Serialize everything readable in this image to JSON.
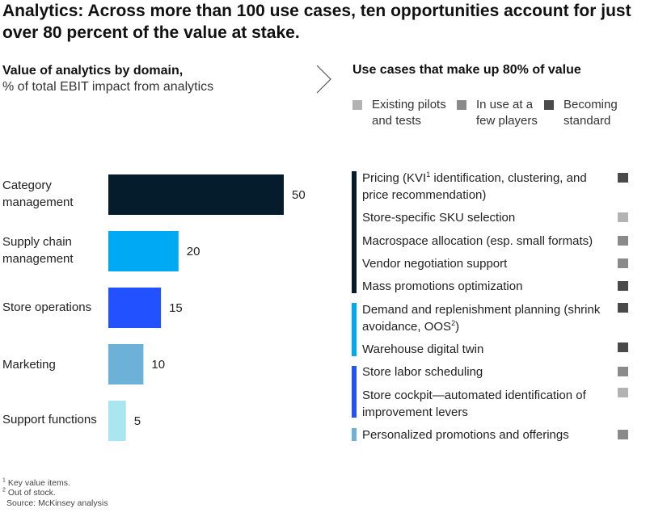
{
  "title": "Analytics: Across more than 100 use cases, ten opportunities account for just over 80 percent of the value at stake.",
  "left_header": {
    "title": "Value of analytics by domain,",
    "subtitle": "% of total EBIT impact from analytics"
  },
  "right_header": "Use cases that make up 80% of value",
  "legend": [
    {
      "line1": "Existing pilots",
      "line2": "and tests",
      "color": "#b3b3b3"
    },
    {
      "line1": "In use at a",
      "line2": "few players",
      "color": "#8a8a8a"
    },
    {
      "line1": "Becoming",
      "line2": "standard",
      "color": "#4a4a4a"
    }
  ],
  "chart_data": {
    "type": "bar",
    "orientation": "horizontal",
    "categories": [
      "Category management",
      "Supply chain management",
      "Store operations",
      "Marketing",
      "Support functions"
    ],
    "category_lines": [
      [
        "Category",
        "management"
      ],
      [
        "Supply chain",
        "management"
      ],
      [
        "Store operations"
      ],
      [
        "Marketing"
      ],
      [
        "Support functions"
      ]
    ],
    "values": [
      50,
      20,
      15,
      10,
      5
    ],
    "value_labels": [
      "50",
      "20",
      "15",
      "10",
      "5"
    ],
    "colors": [
      "#051c2c",
      "#00a9f4",
      "#2251ff",
      "#6bb1d8",
      "#aae6f0"
    ],
    "title": "Value of analytics by domain,",
    "subtitle": "% of total EBIT impact from analytics",
    "xlabel": "",
    "ylabel": "",
    "grid": false,
    "legend": "none"
  },
  "use_cases": [
    {
      "text": "Pricing (KVI",
      "sup": "1",
      "text_after": " identification, clustering, and price recommendation)",
      "status": "Becoming standard",
      "status_color": "#4a4a4a"
    },
    {
      "text": "Store-specific SKU selection",
      "status": "Existing pilots and tests",
      "status_color": "#b3b3b3"
    },
    {
      "text": "Macrospace allocation (esp. small formats)",
      "status": "In use at a few players",
      "status_color": "#8a8a8a"
    },
    {
      "text": "Vendor negotiation support",
      "status": "In use at a few players",
      "status_color": "#8a8a8a"
    },
    {
      "text": "Mass promotions optimization",
      "status": "Becoming standard",
      "status_color": "#4a4a4a"
    },
    {
      "text": "Demand and replenishment planning (shrink avoidance, OOS",
      "sup": "2",
      "text_after": ")",
      "status": "Becoming standard",
      "status_color": "#4a4a4a"
    },
    {
      "text": "Warehouse digital twin",
      "status": "Becoming standard",
      "status_color": "#4a4a4a"
    },
    {
      "text": "Store labor scheduling",
      "status": "In use at a few players",
      "status_color": "#8a8a8a"
    },
    {
      "text": "Store cockpit—automated identification of improvement levers",
      "status": "Existing pilots and tests",
      "status_color": "#b3b3b3"
    },
    {
      "text": "Personalized promotions and offerings",
      "status": "In use at a few players",
      "status_color": "#8a8a8a"
    }
  ],
  "footnotes": [
    {
      "sup": "1",
      "text": " Key value items."
    },
    {
      "sup": "2",
      "text": " Out of stock."
    },
    {
      "sup": "",
      "text": "Source: McKinsey analysis"
    }
  ]
}
